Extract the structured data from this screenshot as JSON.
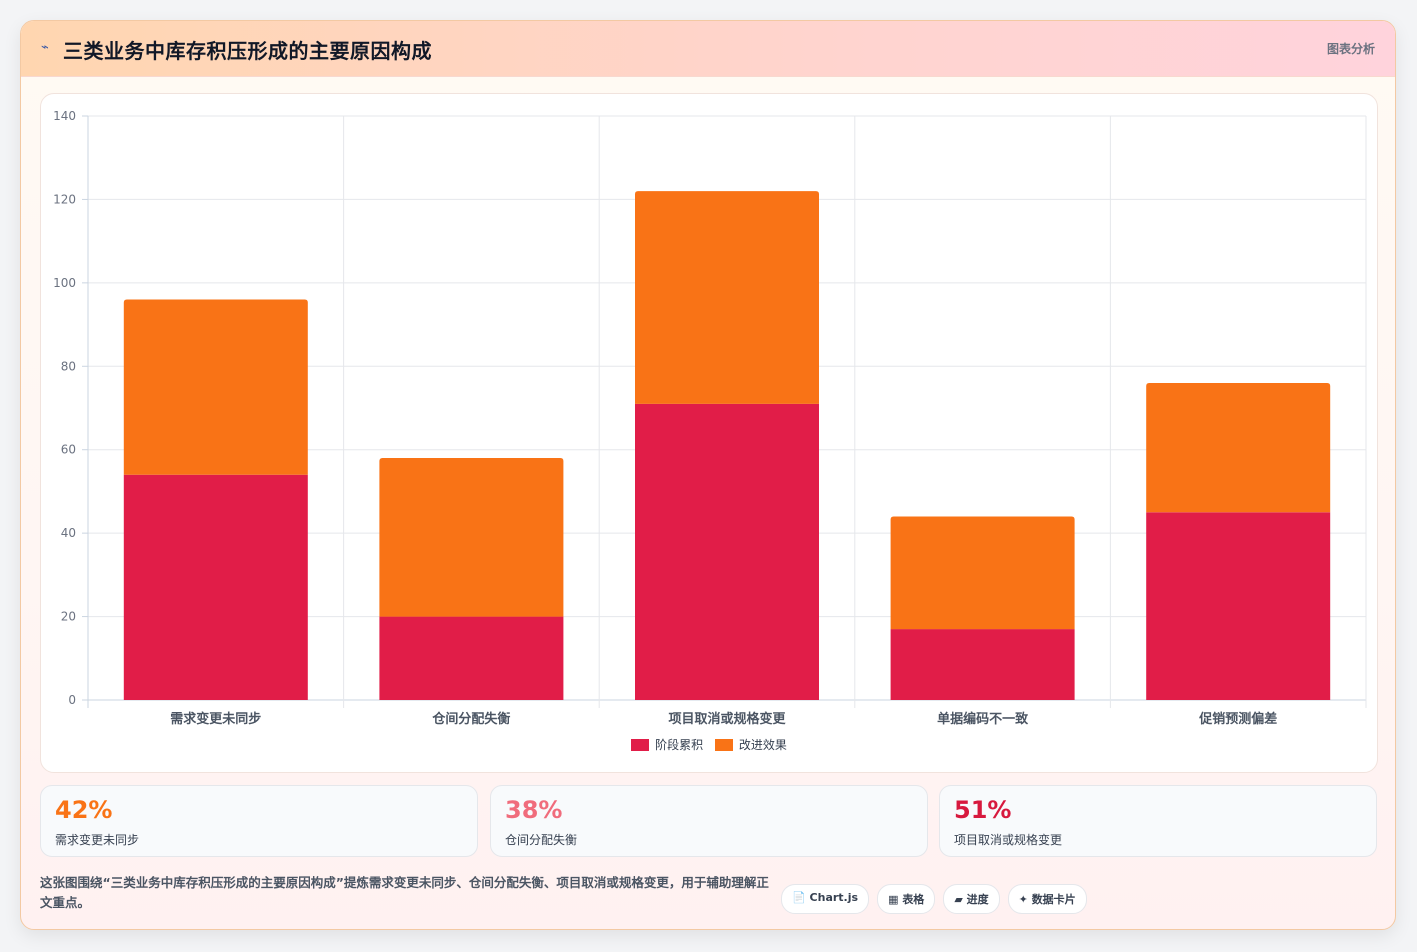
{
  "header": {
    "icon": "chart-icon",
    "title": "三类业务中库存积压形成的主要原因构成",
    "link_label": "图表分析"
  },
  "chart_data": {
    "type": "bar",
    "stacked": true,
    "title": "",
    "xlabel": "",
    "ylabel": "",
    "categories": [
      "需求变更未同步",
      "仓间分配失衡",
      "项目取消或规格变更",
      "单据编码不一致",
      "促销预测偏差"
    ],
    "series": [
      {
        "name": "阶段累积",
        "color": "#e11d48",
        "values": [
          54,
          20,
          71,
          17,
          45
        ]
      },
      {
        "name": "改进效果",
        "color": "#f97316",
        "values": [
          42,
          38,
          51,
          27,
          31
        ]
      }
    ],
    "ylim": [
      0,
      140
    ],
    "yticks": [
      0,
      20,
      40,
      60,
      80,
      100,
      120,
      140
    ],
    "grid": true,
    "legend": "bottom-center"
  },
  "stats": [
    {
      "value": "42%",
      "label": "需求变更未同步",
      "color": "#f97316"
    },
    {
      "value": "38%",
      "label": "仓间分配失衡",
      "color": "#f06c7c"
    },
    {
      "value": "51%",
      "label": "项目取消或规格变更",
      "color": "#d7193e"
    }
  ],
  "footnote": "这张图围绕“三类业务中库存积压形成的主要原因构成”提炼需求变更未同步、仓间分配失衡、项目取消或规格变更，用于辅助理解正文重点。",
  "tags": [
    {
      "icon": "📄",
      "label": "Chart.js"
    },
    {
      "icon": "▦",
      "label": "表格"
    },
    {
      "icon": "▰",
      "label": "进度"
    },
    {
      "icon": "✦",
      "label": "数据卡片"
    }
  ]
}
